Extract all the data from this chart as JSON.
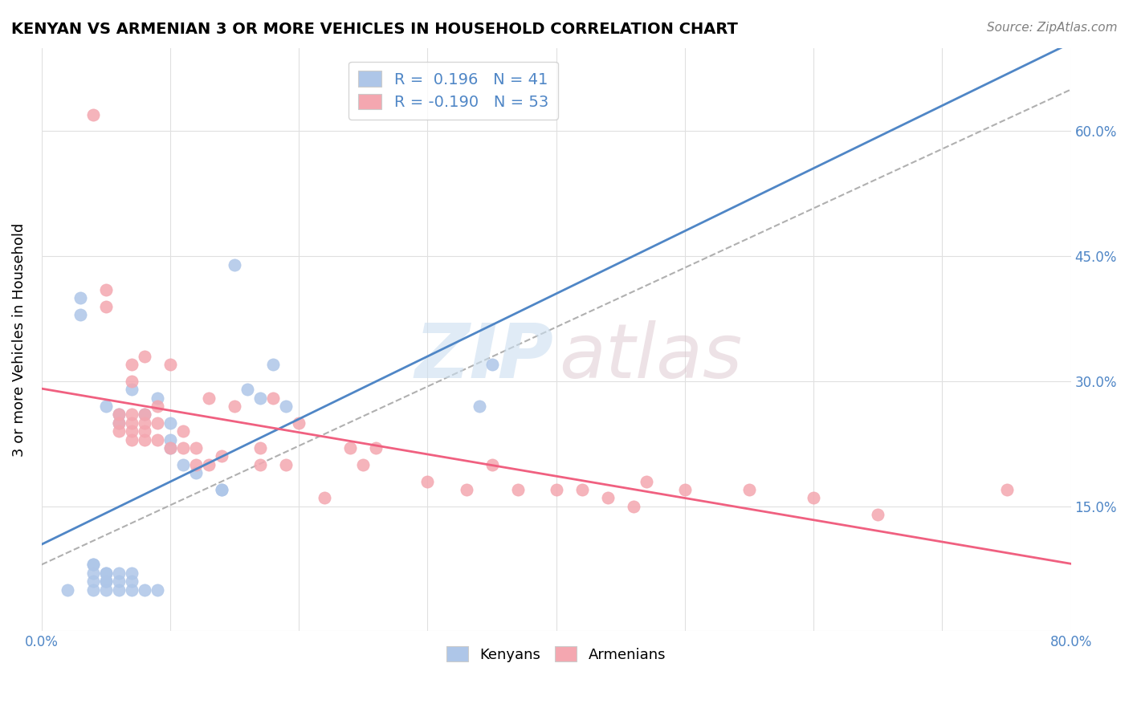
{
  "title": "KENYAN VS ARMENIAN 3 OR MORE VEHICLES IN HOUSEHOLD CORRELATION CHART",
  "source": "Source: ZipAtlas.com",
  "xlabel": "",
  "ylabel": "3 or more Vehicles in Household",
  "xlim": [
    0.0,
    0.8
  ],
  "ylim": [
    0.0,
    0.7
  ],
  "kenyan_color": "#aec6e8",
  "armenian_color": "#f4a7b0",
  "kenyan_line_color": "#4f86c6",
  "armenian_line_color": "#f06080",
  "kenyan_R": 0.196,
  "kenyan_N": 41,
  "armenian_R": -0.19,
  "armenian_N": 53,
  "kenyan_scatter_x": [
    0.02,
    0.03,
    0.03,
    0.04,
    0.04,
    0.04,
    0.04,
    0.04,
    0.05,
    0.05,
    0.05,
    0.05,
    0.05,
    0.05,
    0.06,
    0.06,
    0.06,
    0.06,
    0.06,
    0.07,
    0.07,
    0.07,
    0.07,
    0.08,
    0.08,
    0.09,
    0.09,
    0.1,
    0.1,
    0.1,
    0.11,
    0.12,
    0.14,
    0.14,
    0.15,
    0.16,
    0.17,
    0.18,
    0.19,
    0.34,
    0.35
  ],
  "kenyan_scatter_y": [
    0.05,
    0.38,
    0.4,
    0.05,
    0.06,
    0.07,
    0.08,
    0.08,
    0.05,
    0.06,
    0.06,
    0.07,
    0.07,
    0.27,
    0.05,
    0.06,
    0.07,
    0.25,
    0.26,
    0.05,
    0.06,
    0.07,
    0.29,
    0.05,
    0.26,
    0.05,
    0.28,
    0.22,
    0.23,
    0.25,
    0.2,
    0.19,
    0.17,
    0.17,
    0.44,
    0.29,
    0.28,
    0.32,
    0.27,
    0.27,
    0.32
  ],
  "armenian_scatter_x": [
    0.04,
    0.05,
    0.05,
    0.06,
    0.06,
    0.06,
    0.07,
    0.07,
    0.07,
    0.07,
    0.07,
    0.07,
    0.08,
    0.08,
    0.08,
    0.08,
    0.08,
    0.09,
    0.09,
    0.09,
    0.1,
    0.1,
    0.11,
    0.11,
    0.12,
    0.12,
    0.13,
    0.13,
    0.14,
    0.15,
    0.17,
    0.17,
    0.18,
    0.19,
    0.2,
    0.22,
    0.24,
    0.25,
    0.26,
    0.3,
    0.33,
    0.35,
    0.37,
    0.4,
    0.42,
    0.44,
    0.46,
    0.47,
    0.5,
    0.55,
    0.6,
    0.65,
    0.75
  ],
  "armenian_scatter_y": [
    0.62,
    0.39,
    0.41,
    0.24,
    0.25,
    0.26,
    0.23,
    0.24,
    0.25,
    0.26,
    0.3,
    0.32,
    0.23,
    0.24,
    0.25,
    0.26,
    0.33,
    0.23,
    0.25,
    0.27,
    0.22,
    0.32,
    0.22,
    0.24,
    0.2,
    0.22,
    0.2,
    0.28,
    0.21,
    0.27,
    0.2,
    0.22,
    0.28,
    0.2,
    0.25,
    0.16,
    0.22,
    0.2,
    0.22,
    0.18,
    0.17,
    0.2,
    0.17,
    0.17,
    0.17,
    0.16,
    0.15,
    0.18,
    0.17,
    0.17,
    0.16,
    0.14,
    0.17
  ]
}
